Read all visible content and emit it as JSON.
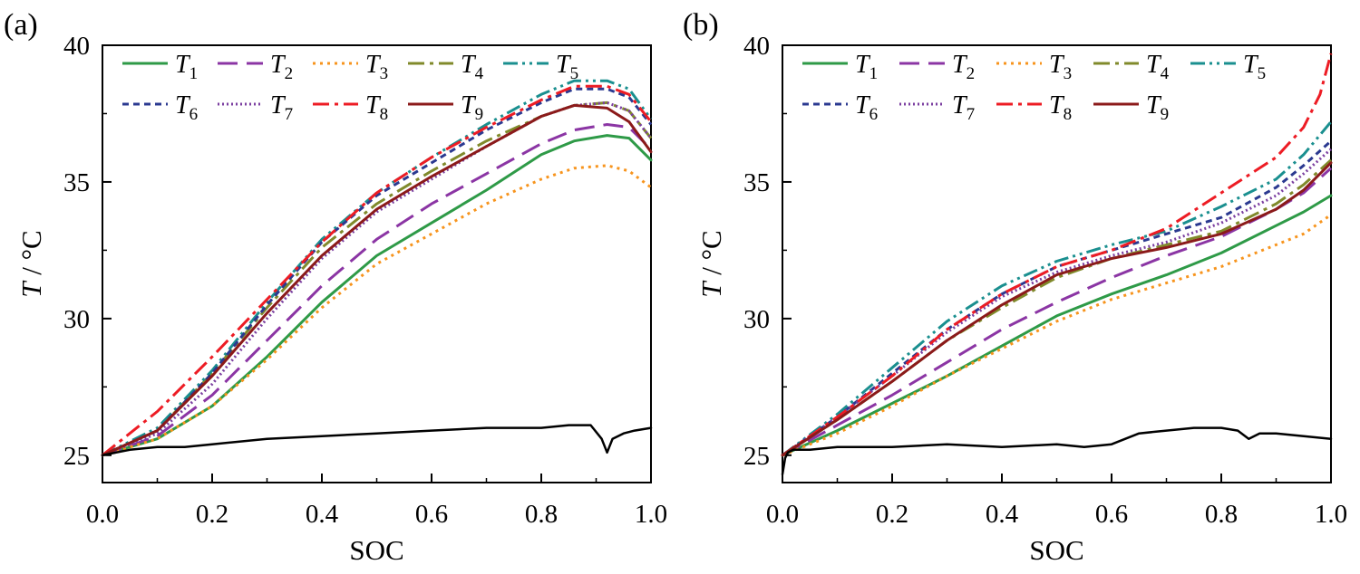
{
  "chart_data": [
    {
      "type": "line",
      "panel_label": "(a)",
      "xlabel": "SOC",
      "ylabel_italic": "T",
      "ylabel_unit": " / °C",
      "xlim": [
        0.0,
        1.0
      ],
      "ylim": [
        24,
        40
      ],
      "xticks": [
        0.0,
        0.2,
        0.4,
        0.6,
        0.8,
        1.0
      ],
      "xtick_labels": [
        "0.0",
        "0.2",
        "0.4",
        "0.6",
        "0.8",
        "1.0"
      ],
      "yticks": [
        25,
        30,
        35,
        40
      ],
      "ytick_labels": [
        "25",
        "30",
        "35",
        "40"
      ],
      "legend_position": "top",
      "series": [
        {
          "name": "T",
          "sub": "1",
          "color": "#2e9a47",
          "style": "solid",
          "x": [
            0,
            0.1,
            0.2,
            0.3,
            0.4,
            0.5,
            0.6,
            0.7,
            0.8,
            0.86,
            0.92,
            0.96,
            1.0
          ],
          "y": [
            25,
            25.6,
            26.8,
            28.6,
            30.6,
            32.3,
            33.5,
            34.7,
            36.0,
            36.5,
            36.7,
            36.6,
            35.8
          ]
        },
        {
          "name": "T",
          "sub": "2",
          "color": "#8b35a4",
          "style": "dash",
          "x": [
            0,
            0.1,
            0.2,
            0.3,
            0.4,
            0.5,
            0.6,
            0.7,
            0.8,
            0.86,
            0.92,
            0.96,
            1.0
          ],
          "y": [
            25,
            25.7,
            27.2,
            29.2,
            31.2,
            32.9,
            34.2,
            35.3,
            36.4,
            36.9,
            37.1,
            37.0,
            36.2
          ]
        },
        {
          "name": "T",
          "sub": "3",
          "color": "#f7941d",
          "style": "dot",
          "x": [
            0,
            0.1,
            0.2,
            0.3,
            0.4,
            0.5,
            0.6,
            0.7,
            0.8,
            0.86,
            0.92,
            0.96,
            1.0
          ],
          "y": [
            25,
            25.6,
            26.8,
            28.5,
            30.4,
            32.0,
            33.1,
            34.2,
            35.1,
            35.5,
            35.6,
            35.4,
            34.8
          ]
        },
        {
          "name": "T",
          "sub": "4",
          "color": "#808a2b",
          "style": "dashdot",
          "x": [
            0,
            0.1,
            0.2,
            0.3,
            0.4,
            0.5,
            0.6,
            0.7,
            0.8,
            0.86,
            0.92,
            0.96,
            1.0
          ],
          "y": [
            25,
            25.9,
            28.0,
            30.4,
            32.6,
            34.2,
            35.4,
            36.5,
            37.4,
            37.8,
            37.9,
            37.6,
            36.6
          ]
        },
        {
          "name": "T",
          "sub": "5",
          "color": "#1a8f8f",
          "style": "dashdotdot",
          "x": [
            0,
            0.1,
            0.2,
            0.3,
            0.4,
            0.5,
            0.6,
            0.7,
            0.8,
            0.86,
            0.92,
            0.96,
            1.0
          ],
          "y": [
            25,
            26.0,
            28.1,
            30.6,
            32.9,
            34.6,
            35.9,
            37.1,
            38.2,
            38.7,
            38.7,
            38.4,
            37.3
          ]
        },
        {
          "name": "T",
          "sub": "6",
          "color": "#2b3990",
          "style": "shortdash",
          "x": [
            0,
            0.1,
            0.2,
            0.3,
            0.4,
            0.5,
            0.6,
            0.7,
            0.8,
            0.86,
            0.92,
            0.96,
            1.0
          ],
          "y": [
            25,
            25.9,
            28.0,
            30.5,
            32.8,
            34.5,
            35.7,
            36.9,
            37.9,
            38.4,
            38.4,
            38.1,
            37.1
          ]
        },
        {
          "name": "T",
          "sub": "7",
          "color": "#7b3fa0",
          "style": "shortdot",
          "x": [
            0,
            0.1,
            0.2,
            0.3,
            0.4,
            0.5,
            0.6,
            0.7,
            0.8,
            0.86,
            0.92,
            0.96,
            1.0
          ],
          "y": [
            25,
            25.8,
            27.6,
            30.0,
            32.2,
            33.9,
            35.1,
            36.3,
            37.4,
            37.8,
            37.9,
            37.6,
            36.6
          ]
        },
        {
          "name": "T",
          "sub": "8",
          "color": "#ed1c24",
          "style": "dashdot",
          "x": [
            0,
            0.1,
            0.2,
            0.3,
            0.4,
            0.5,
            0.6,
            0.7,
            0.8,
            0.86,
            0.92,
            0.96,
            1.0
          ],
          "y": [
            25,
            26.6,
            28.6,
            30.7,
            32.8,
            34.6,
            35.9,
            37.0,
            38.0,
            38.5,
            38.5,
            38.2,
            37.2
          ]
        },
        {
          "name": "T",
          "sub": "9",
          "color": "#8b1a1a",
          "style": "solid",
          "x": [
            0,
            0.1,
            0.2,
            0.3,
            0.4,
            0.5,
            0.6,
            0.7,
            0.8,
            0.86,
            0.92,
            0.96,
            1.0
          ],
          "y": [
            25,
            25.9,
            27.9,
            30.2,
            32.3,
            34.0,
            35.2,
            36.3,
            37.4,
            37.8,
            37.7,
            37.2,
            36.1
          ]
        },
        {
          "name": "",
          "color": "#000000",
          "style": "solid",
          "legend": false,
          "x": [
            0,
            0.05,
            0.1,
            0.15,
            0.2,
            0.3,
            0.4,
            0.5,
            0.6,
            0.7,
            0.8,
            0.85,
            0.89,
            0.91,
            0.92,
            0.93,
            0.95,
            0.97,
            1.0
          ],
          "y": [
            25.0,
            25.2,
            25.3,
            25.3,
            25.4,
            25.6,
            25.7,
            25.8,
            25.9,
            26.0,
            26.0,
            26.1,
            26.1,
            25.6,
            25.1,
            25.6,
            25.8,
            25.9,
            26.0
          ]
        }
      ]
    },
    {
      "type": "line",
      "panel_label": "(b)",
      "xlabel": "SOC",
      "ylabel_italic": "T",
      "ylabel_unit": " / °C",
      "xlim": [
        0.0,
        1.0
      ],
      "ylim": [
        24,
        40
      ],
      "xticks": [
        0.0,
        0.2,
        0.4,
        0.6,
        0.8,
        1.0
      ],
      "xtick_labels": [
        "0.0",
        "0.2",
        "0.4",
        "0.6",
        "0.8",
        "1.0"
      ],
      "yticks": [
        25,
        30,
        35,
        40
      ],
      "ytick_labels": [
        "25",
        "30",
        "35",
        "40"
      ],
      "legend_position": "top",
      "series": [
        {
          "name": "T",
          "sub": "1",
          "color": "#2e9a47",
          "style": "solid",
          "x": [
            0,
            0.1,
            0.2,
            0.3,
            0.4,
            0.5,
            0.6,
            0.7,
            0.8,
            0.9,
            0.95,
            1.0
          ],
          "y": [
            25,
            25.9,
            26.9,
            27.9,
            29.0,
            30.1,
            30.9,
            31.6,
            32.4,
            33.4,
            33.9,
            34.5
          ]
        },
        {
          "name": "T",
          "sub": "2",
          "color": "#8b35a4",
          "style": "dash",
          "x": [
            0,
            0.1,
            0.2,
            0.3,
            0.4,
            0.5,
            0.6,
            0.7,
            0.8,
            0.9,
            0.95,
            1.0
          ],
          "y": [
            25,
            26.1,
            27.2,
            28.4,
            29.6,
            30.6,
            31.5,
            32.3,
            33.0,
            34.0,
            34.6,
            35.5
          ]
        },
        {
          "name": "T",
          "sub": "3",
          "color": "#f7941d",
          "style": "dot",
          "x": [
            0,
            0.1,
            0.2,
            0.3,
            0.4,
            0.5,
            0.6,
            0.7,
            0.8,
            0.9,
            0.95,
            1.0
          ],
          "y": [
            25,
            25.8,
            26.8,
            27.9,
            28.9,
            29.9,
            30.7,
            31.3,
            31.9,
            32.7,
            33.1,
            33.8
          ]
        },
        {
          "name": "T",
          "sub": "4",
          "color": "#808a2b",
          "style": "dashdot",
          "x": [
            0,
            0.1,
            0.2,
            0.3,
            0.4,
            0.5,
            0.6,
            0.7,
            0.8,
            0.9,
            0.95,
            1.0
          ],
          "y": [
            25,
            26.3,
            27.7,
            29.2,
            30.4,
            31.5,
            32.2,
            32.7,
            33.2,
            34.2,
            34.9,
            35.8
          ]
        },
        {
          "name": "T",
          "sub": "5",
          "color": "#1a8f8f",
          "style": "dashdotdot",
          "x": [
            0,
            0.1,
            0.2,
            0.3,
            0.4,
            0.5,
            0.6,
            0.7,
            0.8,
            0.9,
            0.95,
            1.0
          ],
          "y": [
            25,
            26.5,
            28.2,
            29.9,
            31.2,
            32.1,
            32.7,
            33.2,
            34.1,
            35.1,
            36.0,
            37.2
          ]
        },
        {
          "name": "T",
          "sub": "6",
          "color": "#2b3990",
          "style": "shortdash",
          "x": [
            0,
            0.1,
            0.2,
            0.3,
            0.4,
            0.5,
            0.6,
            0.7,
            0.8,
            0.9,
            0.95,
            1.0
          ],
          "y": [
            25,
            26.4,
            28.0,
            29.6,
            30.9,
            31.9,
            32.5,
            33.1,
            33.7,
            34.8,
            35.6,
            36.5
          ]
        },
        {
          "name": "T",
          "sub": "7",
          "color": "#7b3fa0",
          "style": "shortdot",
          "x": [
            0,
            0.1,
            0.2,
            0.3,
            0.4,
            0.5,
            0.6,
            0.7,
            0.8,
            0.9,
            0.95,
            1.0
          ],
          "y": [
            25,
            26.4,
            27.9,
            29.5,
            30.8,
            31.7,
            32.3,
            32.8,
            33.5,
            34.5,
            35.3,
            36.2
          ]
        },
        {
          "name": "T",
          "sub": "8",
          "color": "#ed1c24",
          "style": "dashdot",
          "x": [
            0,
            0.1,
            0.2,
            0.3,
            0.4,
            0.5,
            0.6,
            0.7,
            0.8,
            0.9,
            0.95,
            0.98,
            1.0
          ],
          "y": [
            25,
            26.4,
            27.9,
            29.6,
            30.9,
            31.9,
            32.5,
            33.3,
            34.6,
            35.9,
            37.0,
            38.2,
            39.7
          ]
        },
        {
          "name": "T",
          "sub": "9",
          "color": "#8b1a1a",
          "style": "solid",
          "x": [
            0,
            0.1,
            0.2,
            0.3,
            0.4,
            0.5,
            0.6,
            0.7,
            0.8,
            0.9,
            0.95,
            1.0
          ],
          "y": [
            25,
            26.3,
            27.7,
            29.2,
            30.5,
            31.6,
            32.2,
            32.6,
            33.1,
            34.0,
            34.7,
            35.7
          ]
        },
        {
          "name": "",
          "color": "#000000",
          "style": "solid",
          "legend": false,
          "x": [
            0,
            0.005,
            0.01,
            0.02,
            0.05,
            0.1,
            0.2,
            0.3,
            0.4,
            0.5,
            0.55,
            0.6,
            0.65,
            0.7,
            0.75,
            0.8,
            0.83,
            0.85,
            0.87,
            0.9,
            0.95,
            1.0
          ],
          "y": [
            24.3,
            24.9,
            25.1,
            25.2,
            25.2,
            25.3,
            25.3,
            25.4,
            25.3,
            25.4,
            25.3,
            25.4,
            25.8,
            25.9,
            26.0,
            26.0,
            25.9,
            25.6,
            25.8,
            25.8,
            25.7,
            25.6
          ]
        }
      ]
    }
  ]
}
